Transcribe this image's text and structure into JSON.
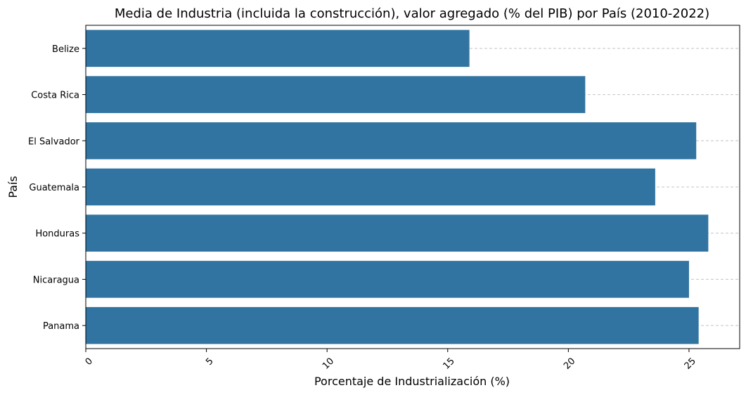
{
  "chart_data": {
    "type": "bar",
    "orientation": "horizontal",
    "title": "Media de Industria (incluida la construcción), valor agregado (% del PIB) por País (2010-2022)",
    "xlabel": "Porcentaje de Industrialización (%)",
    "ylabel": "País",
    "categories": [
      "Belize",
      "Costa Rica",
      "El Salvador",
      "Guatemala",
      "Honduras",
      "Nicaragua",
      "Panama"
    ],
    "values": [
      15.9,
      20.7,
      25.3,
      23.6,
      25.8,
      25.0,
      25.4
    ],
    "xlim": [
      0,
      27.1
    ],
    "xticks": [
      "0",
      "5",
      "10",
      "15",
      "20",
      "25"
    ],
    "xtick_values": [
      0,
      5,
      10,
      15,
      20,
      25
    ],
    "bar_color": "#3274a1",
    "grid": "y-dashed",
    "legend": "none"
  }
}
